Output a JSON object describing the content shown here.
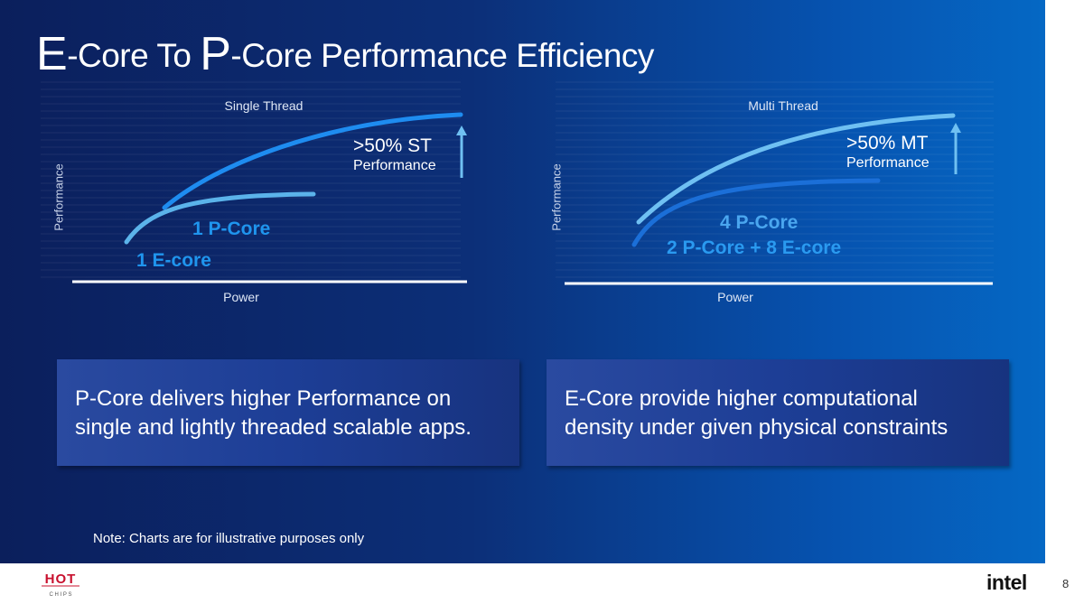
{
  "slide": {
    "title_prefix_1": "E",
    "title_mid_1": "-Core To ",
    "title_prefix_2": "P",
    "title_mid_2": "-Core Performance Efficiency"
  },
  "charts": {
    "left": {
      "title": "Single Thread",
      "xlabel": "Power",
      "ylabel": "Performance",
      "series_upper": "1 P-Core",
      "series_lower": "1 E-core",
      "callout_line1": ">50% ST",
      "callout_line2": "Performance"
    },
    "right": {
      "title": "Multi Thread",
      "xlabel": "Power",
      "ylabel": "Performance",
      "series_upper": "4 P-Core",
      "series_lower": "2 P-Core + 8 E-core",
      "callout_line1": ">50% MT",
      "callout_line2": "Performance"
    }
  },
  "boxes": {
    "left": {
      "line1": "P-Core delivers higher Performance on",
      "line2": "single and lightly threaded scalable apps."
    },
    "right": {
      "line1": "E-Core provide higher computational",
      "line2": "density under given physical constraints"
    }
  },
  "note": "Note: Charts are for illustrative purposes only",
  "footer": {
    "hot_chips_top": "HOT",
    "hot_chips_bottom": "C H I P S",
    "brand": "intel",
    "page_number": "8"
  },
  "colors": {
    "curve_bright": "#1e8cf0",
    "curve_light": "#6fc0f2",
    "curve_dark_blue": "#1b6fd8",
    "label_blue": "#1f95ee"
  }
}
